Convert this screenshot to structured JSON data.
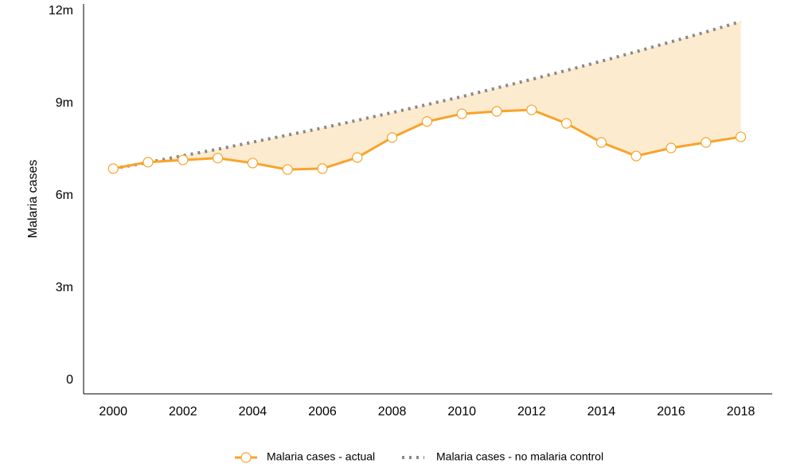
{
  "chart_data": {
    "type": "line",
    "y_label": "Malaria cases",
    "x": [
      2000,
      2001,
      2002,
      2003,
      2004,
      2005,
      2006,
      2007,
      2008,
      2009,
      2010,
      2011,
      2012,
      2013,
      2014,
      2015,
      2016,
      2017,
      2018
    ],
    "series": [
      {
        "name": "Malaria cases - actual",
        "color": "#f7a42a",
        "style": "solid",
        "markers": true,
        "values": [
          6880000,
          7090000,
          7160000,
          7220000,
          7060000,
          6850000,
          6880000,
          7240000,
          7890000,
          8410000,
          8660000,
          8740000,
          8790000,
          8350000,
          7730000,
          7290000,
          7550000,
          7730000,
          7910000
        ]
      },
      {
        "name": "Malaria cases - no malaria control",
        "color": "#888888",
        "style": "dotted",
        "markers": false,
        "values": [
          6880000,
          7080000,
          7300000,
          7510000,
          7740000,
          7970000,
          8200000,
          8450000,
          8700000,
          8960000,
          9220000,
          9500000,
          9780000,
          10070000,
          10370000,
          10680000,
          11000000,
          11320000,
          11660000
        ]
      }
    ],
    "fill_between": "#fdebd0",
    "xlim": [
      1999.15,
      2018.9
    ],
    "xticks": [
      2000,
      2002,
      2004,
      2006,
      2008,
      2010,
      2012,
      2014,
      2016,
      2018
    ],
    "ylim": [
      -440000,
      12230000
    ],
    "yticks": [
      0,
      {
        "value": 3000000,
        "label": "3m"
      },
      {
        "value": 6000000,
        "label": "6m"
      },
      {
        "value": 9000000,
        "label": "9m"
      },
      {
        "value": 12000000,
        "label": "12m"
      }
    ],
    "grid": false,
    "legend": "bottom"
  }
}
